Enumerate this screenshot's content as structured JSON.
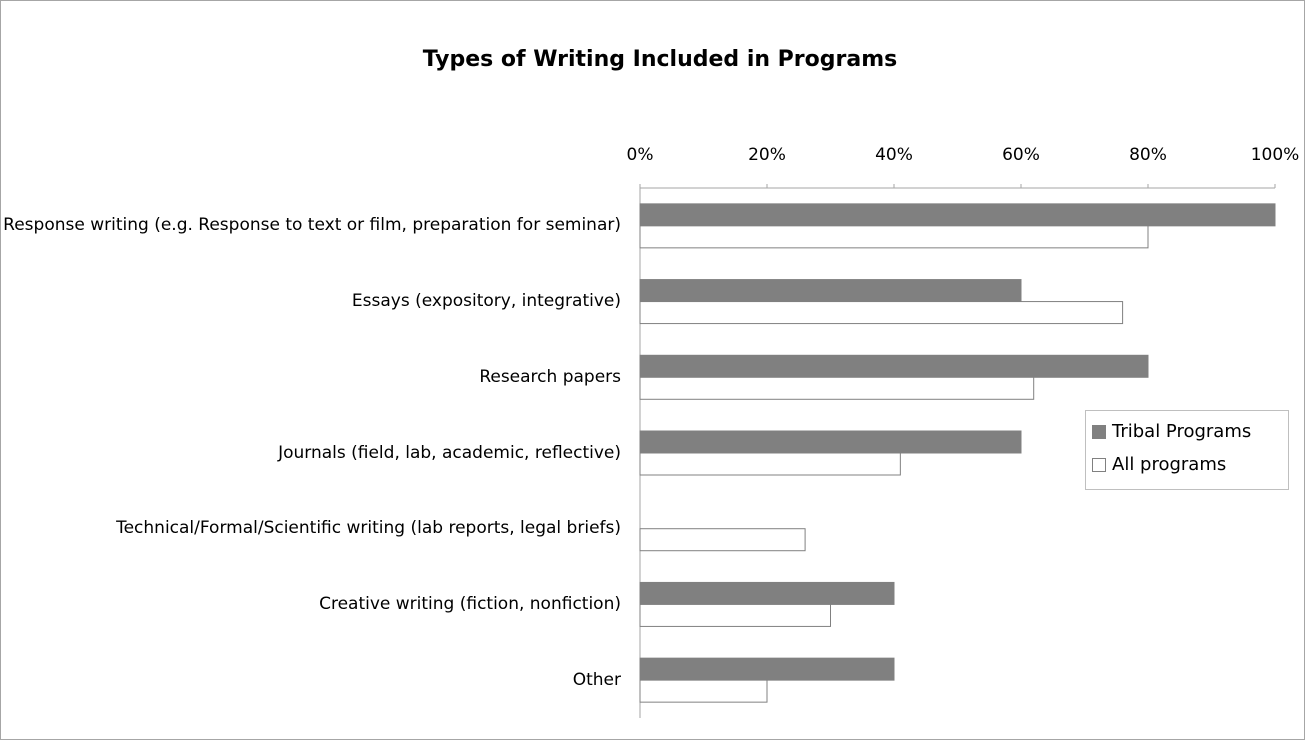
{
  "chart_data": {
    "type": "bar",
    "orientation": "horizontal",
    "title": "Types of Writing Included in Programs",
    "categories": [
      "Response writing (e.g. Response to text or film, preparation for seminar)",
      "Essays (expository, integrative)",
      "Research papers",
      "Journals (field, lab, academic, reflective)",
      "Technical/Formal/Scientific writing (lab reports, legal briefs)",
      "Creative writing (fiction, nonfiction)",
      "Other"
    ],
    "series": [
      {
        "name": "Tribal Programs",
        "color": "#808080",
        "values": [
          100,
          60,
          80,
          60,
          0,
          40,
          40
        ]
      },
      {
        "name": "All programs",
        "color": "#ffffff",
        "values": [
          80,
          76,
          62,
          41,
          26,
          30,
          20
        ]
      }
    ],
    "xlim": [
      0,
      100
    ],
    "xticks": [
      {
        "value": 0,
        "label": "0%"
      },
      {
        "value": 20,
        "label": "20%"
      },
      {
        "value": 40,
        "label": "40%"
      },
      {
        "value": 60,
        "label": "60%"
      },
      {
        "value": 80,
        "label": "80%"
      },
      {
        "value": 100,
        "label": "100%"
      }
    ],
    "legend": "right",
    "grid": false
  }
}
